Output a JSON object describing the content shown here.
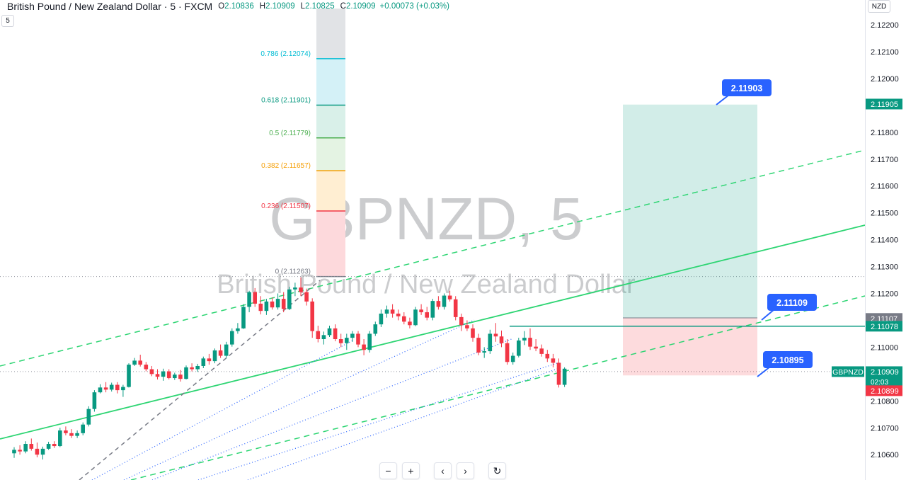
{
  "header": {
    "symbol_title": "British Pound / New Zealand Dollar · 5 · FXCM",
    "open_label": "O",
    "open": "2.10836",
    "high_label": "H",
    "high": "2.10909",
    "low_label": "L",
    "low": "2.10825",
    "close_label": "C",
    "close": "2.10909",
    "change": "+0.00073 (+0.03%)",
    "interval": "5",
    "currency": "NZD"
  },
  "watermark": {
    "ticker": "GBPNZD, 5",
    "name": "British Pound / New Zealand Dollar"
  },
  "nav": {
    "zoom_out": "−",
    "zoom_in": "+",
    "scroll_left": "‹",
    "scroll_right": "›",
    "reset": "↻"
  },
  "colors": {
    "up": "#089981",
    "down": "#f23645",
    "trend": "#2ed573",
    "fib_dotted": "#2962ff",
    "callout": "#2962ff"
  },
  "chart_data": {
    "type": "candlestick",
    "ylim": [
      2.1056,
      2.1226
    ],
    "y_ticks": [
      "2.12200",
      "2.12100",
      "2.12000",
      "2.11900",
      "2.11800",
      "2.11700",
      "2.11600",
      "2.11500",
      "2.11400",
      "2.11300",
      "2.11200",
      "2.11100",
      "2.11000",
      "2.10900",
      "2.10800",
      "2.10700",
      "2.10600"
    ],
    "candles": [
      [
        2.10605,
        2.10628,
        2.10588,
        2.10618
      ],
      [
        2.10618,
        2.10635,
        2.106,
        2.10612
      ],
      [
        2.10612,
        2.1065,
        2.10605,
        2.1064
      ],
      [
        2.1064,
        2.1066,
        2.10615,
        2.10622
      ],
      [
        2.10622,
        2.10645,
        2.1059,
        2.106
      ],
      [
        2.106,
        2.1063,
        2.10582,
        2.10622
      ],
      [
        2.10622,
        2.10648,
        2.10618,
        2.1064
      ],
      [
        2.1064,
        2.1065,
        2.10625,
        2.10632
      ],
      [
        2.10632,
        2.107,
        2.10628,
        2.1069
      ],
      [
        2.1069,
        2.10705,
        2.10672,
        2.1068
      ],
      [
        2.1068,
        2.10695,
        2.10662,
        2.1067
      ],
      [
        2.1067,
        2.1069,
        2.10662,
        2.1068
      ],
      [
        2.1068,
        2.1072,
        2.10672,
        2.10712
      ],
      [
        2.10712,
        2.1078,
        2.10705,
        2.1077
      ],
      [
        2.1077,
        2.1084,
        2.1076,
        2.10832
      ],
      [
        2.10832,
        2.10862,
        2.10828,
        2.1085
      ],
      [
        2.1085,
        2.1087,
        2.10832,
        2.10842
      ],
      [
        2.10842,
        2.10868,
        2.10835,
        2.1086
      ],
      [
        2.1086,
        2.1087,
        2.10828,
        2.1084
      ],
      [
        2.1084,
        2.1086,
        2.10815,
        2.10852
      ],
      [
        2.10852,
        2.1094,
        2.1085,
        2.10935
      ],
      [
        2.10935,
        2.1096,
        2.1093,
        2.1095
      ],
      [
        2.1095,
        2.10972,
        2.10928,
        2.10935
      ],
      [
        2.10935,
        2.10945,
        2.1091,
        2.10918
      ],
      [
        2.10918,
        2.1093,
        2.10892,
        2.109
      ],
      [
        2.109,
        2.10918,
        2.1088,
        2.1089
      ],
      [
        2.1089,
        2.1092,
        2.10875,
        2.1091
      ],
      [
        2.1091,
        2.10918,
        2.1088,
        2.10885
      ],
      [
        2.10885,
        2.10905,
        2.10878,
        2.10898
      ],
      [
        2.10898,
        2.10915,
        2.10872,
        2.10882
      ],
      [
        2.10882,
        2.10932,
        2.1088,
        2.10925
      ],
      [
        2.10925,
        2.1094,
        2.1091,
        2.10918
      ],
      [
        2.10918,
        2.10938,
        2.10908,
        2.1093
      ],
      [
        2.1093,
        2.10965,
        2.10922,
        2.10958
      ],
      [
        2.10958,
        2.10975,
        2.10935,
        2.10948
      ],
      [
        2.10948,
        2.10995,
        2.1094,
        2.10988
      ],
      [
        2.10988,
        2.1101,
        2.1096,
        2.10968
      ],
      [
        2.10968,
        2.1102,
        2.1096,
        2.1101
      ],
      [
        2.1101,
        2.1107,
        2.11002,
        2.1106
      ],
      [
        2.1106,
        2.1109,
        2.1105,
        2.1107
      ],
      [
        2.1107,
        2.1116,
        2.11068,
        2.1115
      ],
      [
        2.1115,
        2.1121,
        2.1113,
        2.11205
      ],
      [
        2.11205,
        2.1122,
        2.1115,
        2.11162
      ],
      [
        2.11162,
        2.1119,
        2.11122,
        2.11135
      ],
      [
        2.11135,
        2.1118,
        2.1112,
        2.1117
      ],
      [
        2.1117,
        2.11185,
        2.1114,
        2.11148
      ],
      [
        2.11148,
        2.112,
        2.1114,
        2.1118
      ],
      [
        2.1118,
        2.11205,
        2.1113,
        2.11142
      ],
      [
        2.11142,
        2.11225,
        2.11138,
        2.11215
      ],
      [
        2.11215,
        2.1124,
        2.1119,
        2.11222
      ],
      [
        2.11222,
        2.1126,
        2.1119,
        2.11205
      ],
      [
        2.11205,
        2.11218,
        2.11155,
        2.1117
      ],
      [
        2.1117,
        2.11182,
        2.11035,
        2.1106
      ],
      [
        2.1106,
        2.1108,
        2.11018,
        2.1103
      ],
      [
        2.1103,
        2.11058,
        2.1101,
        2.11045
      ],
      [
        2.11045,
        2.1108,
        2.11038,
        2.1107
      ],
      [
        2.1107,
        2.11085,
        2.11022,
        2.1103
      ],
      [
        2.1103,
        2.1105,
        2.11,
        2.11015
      ],
      [
        2.11015,
        2.1105,
        2.1099,
        2.11035
      ],
      [
        2.11035,
        2.1106,
        2.1102,
        2.1105
      ],
      [
        2.1105,
        2.1106,
        2.11,
        2.1101
      ],
      [
        2.1101,
        2.1103,
        2.1097,
        2.1099
      ],
      [
        2.1099,
        2.1106,
        2.1098,
        2.1105
      ],
      [
        2.1105,
        2.11095,
        2.11042,
        2.11085
      ],
      [
        2.11085,
        2.1114,
        2.11075,
        2.11125
      ],
      [
        2.11125,
        2.11155,
        2.1111,
        2.1114
      ],
      [
        2.1114,
        2.1116,
        2.1111,
        2.11125
      ],
      [
        2.11125,
        2.1114,
        2.111,
        2.11115
      ],
      [
        2.11115,
        2.1113,
        2.11085,
        2.11095
      ],
      [
        2.11095,
        2.1111,
        2.1107,
        2.11082
      ],
      [
        2.11082,
        2.1115,
        2.11078,
        2.1114
      ],
      [
        2.1114,
        2.1116,
        2.1112,
        2.1113
      ],
      [
        2.1113,
        2.1115,
        2.111,
        2.1111
      ],
      [
        2.1111,
        2.1118,
        2.111,
        2.11172
      ],
      [
        2.11172,
        2.1119,
        2.1114,
        2.1115
      ],
      [
        2.1115,
        2.112,
        2.1114,
        2.11192
      ],
      [
        2.11192,
        2.1121,
        2.1117,
        2.11178
      ],
      [
        2.11178,
        2.1119,
        2.111,
        2.11112
      ],
      [
        2.11112,
        2.11125,
        2.1106,
        2.11082
      ],
      [
        2.11082,
        2.111,
        2.1106,
        2.1107
      ],
      [
        2.1107,
        2.11085,
        2.1102,
        2.11035
      ],
      [
        2.11035,
        2.1105,
        2.1097,
        2.1098
      ],
      [
        2.1098,
        2.11,
        2.1096,
        2.10985
      ],
      [
        2.10985,
        2.11065,
        2.10975,
        2.1105
      ],
      [
        2.1105,
        2.1109,
        2.1102,
        2.1104
      ],
      [
        2.1104,
        2.11062,
        2.11,
        2.11015
      ],
      [
        2.11015,
        2.1103,
        2.10935,
        2.10945
      ],
      [
        2.10945,
        2.1098,
        2.10935,
        2.10968
      ],
      [
        2.10968,
        2.11035,
        2.10962,
        2.11025
      ],
      [
        2.11025,
        2.1106,
        2.11008,
        2.11035
      ],
      [
        2.11035,
        2.1107,
        2.1099,
        2.11002
      ],
      [
        2.11002,
        2.1103,
        2.10985,
        2.10995
      ],
      [
        2.10995,
        2.1101,
        2.10965,
        2.10975
      ],
      [
        2.10975,
        2.1099,
        2.10945,
        2.10958
      ],
      [
        2.10958,
        2.10975,
        2.10925,
        2.10942
      ],
      [
        2.10942,
        2.10958,
        2.1085,
        2.1086
      ],
      [
        2.1086,
        2.10925,
        2.10852,
        2.1092
      ]
    ],
    "fib": {
      "levels": [
        {
          "label": "0.786 (2.12074)",
          "price": 2.12074,
          "color": "#00bcd4",
          "fill": "#d4f1f7"
        },
        {
          "label": "0.618 (2.11901)",
          "price": 2.11901,
          "color": "#089981",
          "fill": "#d9f0e9"
        },
        {
          "label": "0.5 (2.11779)",
          "price": 2.11779,
          "color": "#4caf50",
          "fill": "#e4f3e3"
        },
        {
          "label": "0.382 (2.11657)",
          "price": 2.11657,
          "color": "#f59d00",
          "fill": "#ffeed2"
        },
        {
          "label": "0.236 (2.11507)",
          "price": 2.11507,
          "color": "#f23645",
          "fill": "#fdd9dc"
        },
        {
          "label": "0 (2.11263)",
          "price": 2.11263,
          "color": "#787b86",
          "fill": "none"
        }
      ],
      "top_price": 2.1226,
      "top_fill": "#e1e3e6"
    },
    "position": {
      "target": 2.11903,
      "entry": 2.11109,
      "stop": 2.10895,
      "target_label": "2.11903",
      "entry_label": "2.11109",
      "stop_label": "2.10895"
    },
    "horizontal_line": 2.11078,
    "axis_labels": [
      {
        "text": "2.11905",
        "price": 2.11905,
        "bg": "#089981",
        "fg": "#ffffff"
      },
      {
        "text": "2.11107",
        "price": 2.11107,
        "bg": "#787b86",
        "fg": "#ffffff"
      },
      {
        "text": "2.11078",
        "price": 2.11078,
        "bg": "#089981",
        "fg": "#ffffff"
      },
      {
        "text": "2.10909",
        "price": 2.10909,
        "bg": "#089981",
        "fg": "#ffffff",
        "sub": "02:03"
      },
      {
        "text": "2.10899",
        "price": 2.10838,
        "bg": "#f23645",
        "fg": "#ffffff"
      }
    ],
    "symbol_tag": "GBPNZD",
    "dotted_h_lines": [
      2.11263,
      2.10909
    ]
  }
}
